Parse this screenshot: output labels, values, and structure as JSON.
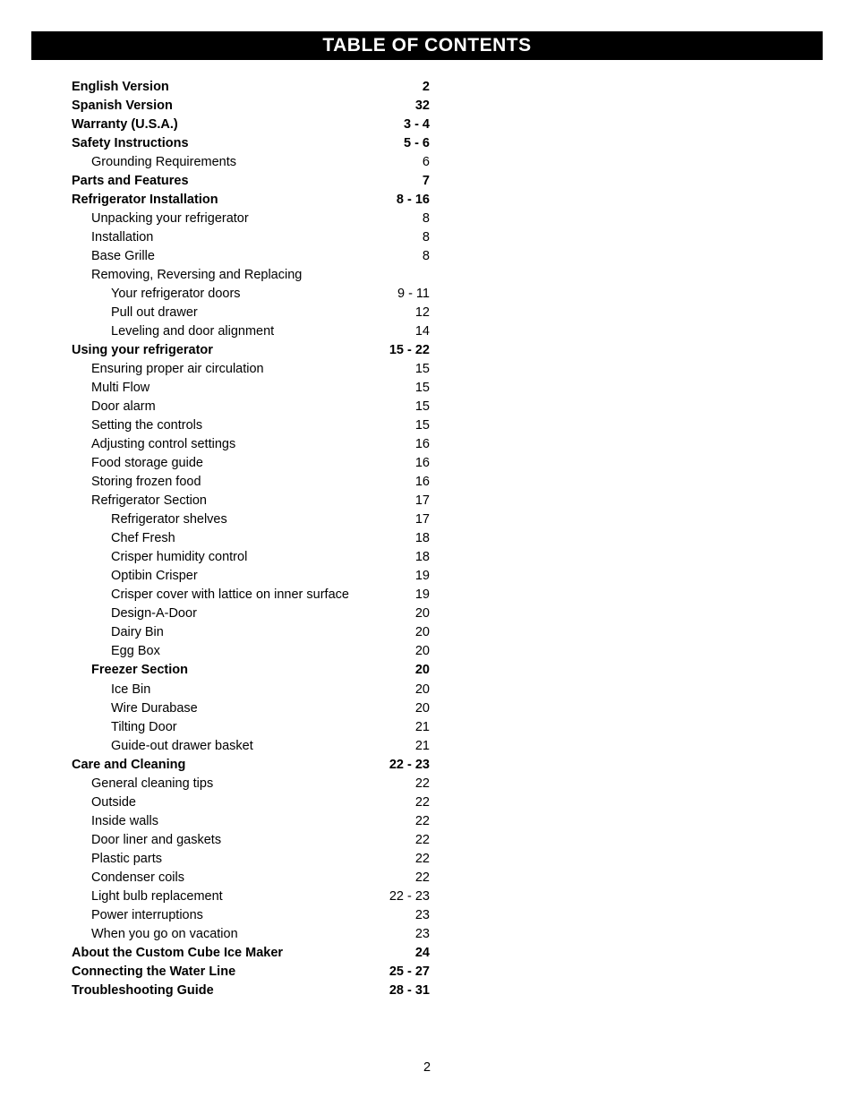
{
  "title": "TABLE OF CONTENTS",
  "page_number": "2",
  "toc": [
    {
      "label": "English Version",
      "page": "2",
      "bold": true,
      "indent": 0
    },
    {
      "label": "Spanish Version",
      "page": "32",
      "bold": true,
      "indent": 0
    },
    {
      "label": "Warranty (U.S.A.)",
      "page": "3 - 4",
      "bold": true,
      "indent": 0
    },
    {
      "label": "Safety Instructions",
      "page": "5 - 6",
      "bold": true,
      "indent": 0
    },
    {
      "label": "Grounding Requirements",
      "page": "6",
      "bold": false,
      "indent": 1
    },
    {
      "label": "Parts and Features",
      "page": "7",
      "bold": true,
      "indent": 0
    },
    {
      "label": "Refrigerator Installation",
      "page": "8 - 16",
      "bold": true,
      "indent": 0
    },
    {
      "label": "Unpacking your refrigerator",
      "page": "8",
      "bold": false,
      "indent": 1
    },
    {
      "label": "Installation",
      "page": "8",
      "bold": false,
      "indent": 1
    },
    {
      "label": "Base Grille",
      "page": "8",
      "bold": false,
      "indent": 1
    },
    {
      "label": "Removing, Reversing and Replacing",
      "page": "",
      "bold": false,
      "indent": 1
    },
    {
      "label": "Your refrigerator doors",
      "page": "9 - 11",
      "bold": false,
      "indent": 2
    },
    {
      "label": "Pull out drawer",
      "page": "12",
      "bold": false,
      "indent": 2
    },
    {
      "label": "Leveling and door alignment",
      "page": "14",
      "bold": false,
      "indent": 2
    },
    {
      "label": "Using your refrigerator",
      "page": "15 - 22",
      "bold": true,
      "indent": 0
    },
    {
      "label": "Ensuring proper air circulation",
      "page": "15",
      "bold": false,
      "indent": 1
    },
    {
      "label": "Multi Flow",
      "page": "15",
      "bold": false,
      "indent": 1
    },
    {
      "label": "Door alarm",
      "page": "15",
      "bold": false,
      "indent": 1
    },
    {
      "label": "Setting the controls",
      "page": "15",
      "bold": false,
      "indent": 1
    },
    {
      "label": "Adjusting control settings",
      "page": "16",
      "bold": false,
      "indent": 1
    },
    {
      "label": "Food storage guide",
      "page": "16",
      "bold": false,
      "indent": 1
    },
    {
      "label": "Storing frozen food",
      "page": "16",
      "bold": false,
      "indent": 1
    },
    {
      "label": "Refrigerator Section",
      "page": "17",
      "bold": false,
      "indent": 1
    },
    {
      "label": "Refrigerator shelves",
      "page": "17",
      "bold": false,
      "indent": 2
    },
    {
      "label": "Chef Fresh",
      "page": "18",
      "bold": false,
      "indent": 2
    },
    {
      "label": "Crisper humidity control",
      "page": "18",
      "bold": false,
      "indent": 2
    },
    {
      "label": "Optibin Crisper",
      "page": "19",
      "bold": false,
      "indent": 2
    },
    {
      "label": "Crisper cover with lattice on inner surface",
      "page": "19",
      "bold": false,
      "indent": 2
    },
    {
      "label": "Design-A-Door",
      "page": "20",
      "bold": false,
      "indent": 2
    },
    {
      "label": "Dairy Bin",
      "page": "20",
      "bold": false,
      "indent": 2
    },
    {
      "label": "Egg Box",
      "page": "20",
      "bold": false,
      "indent": 2
    },
    {
      "label": "Freezer Section",
      "page": "20",
      "bold": true,
      "indent": 1
    },
    {
      "label": "Ice Bin",
      "page": "20",
      "bold": false,
      "indent": 2
    },
    {
      "label": "Wire Durabase",
      "page": "20",
      "bold": false,
      "indent": 2
    },
    {
      "label": "Tilting Door",
      "page": "21",
      "bold": false,
      "indent": 2
    },
    {
      "label": "Guide-out drawer basket",
      "page": "21",
      "bold": false,
      "indent": 2
    },
    {
      "label": "Care and Cleaning",
      "page": "22 - 23",
      "bold": true,
      "indent": 0
    },
    {
      "label": "General cleaning tips",
      "page": "22",
      "bold": false,
      "indent": 1
    },
    {
      "label": "Outside",
      "page": "22",
      "bold": false,
      "indent": 1
    },
    {
      "label": "Inside walls",
      "page": "22",
      "bold": false,
      "indent": 1
    },
    {
      "label": "Door liner and gaskets",
      "page": "22",
      "bold": false,
      "indent": 1
    },
    {
      "label": "Plastic parts",
      "page": "22",
      "bold": false,
      "indent": 1
    },
    {
      "label": "Condenser coils",
      "page": "22",
      "bold": false,
      "indent": 1
    },
    {
      "label": "Light bulb replacement",
      "page": "22 - 23",
      "bold": false,
      "indent": 1
    },
    {
      "label": "Power interruptions",
      "page": "23",
      "bold": false,
      "indent": 1
    },
    {
      "label": "When you go on vacation",
      "page": "23",
      "bold": false,
      "indent": 1
    },
    {
      "label": "About the Custom Cube Ice Maker",
      "page": "24",
      "bold": true,
      "indent": 0
    },
    {
      "label": "Connecting the Water Line",
      "page": "25 - 27",
      "bold": true,
      "indent": 0
    },
    {
      "label": "Troubleshooting Guide",
      "page": "28 - 31",
      "bold": true,
      "indent": 0
    }
  ]
}
